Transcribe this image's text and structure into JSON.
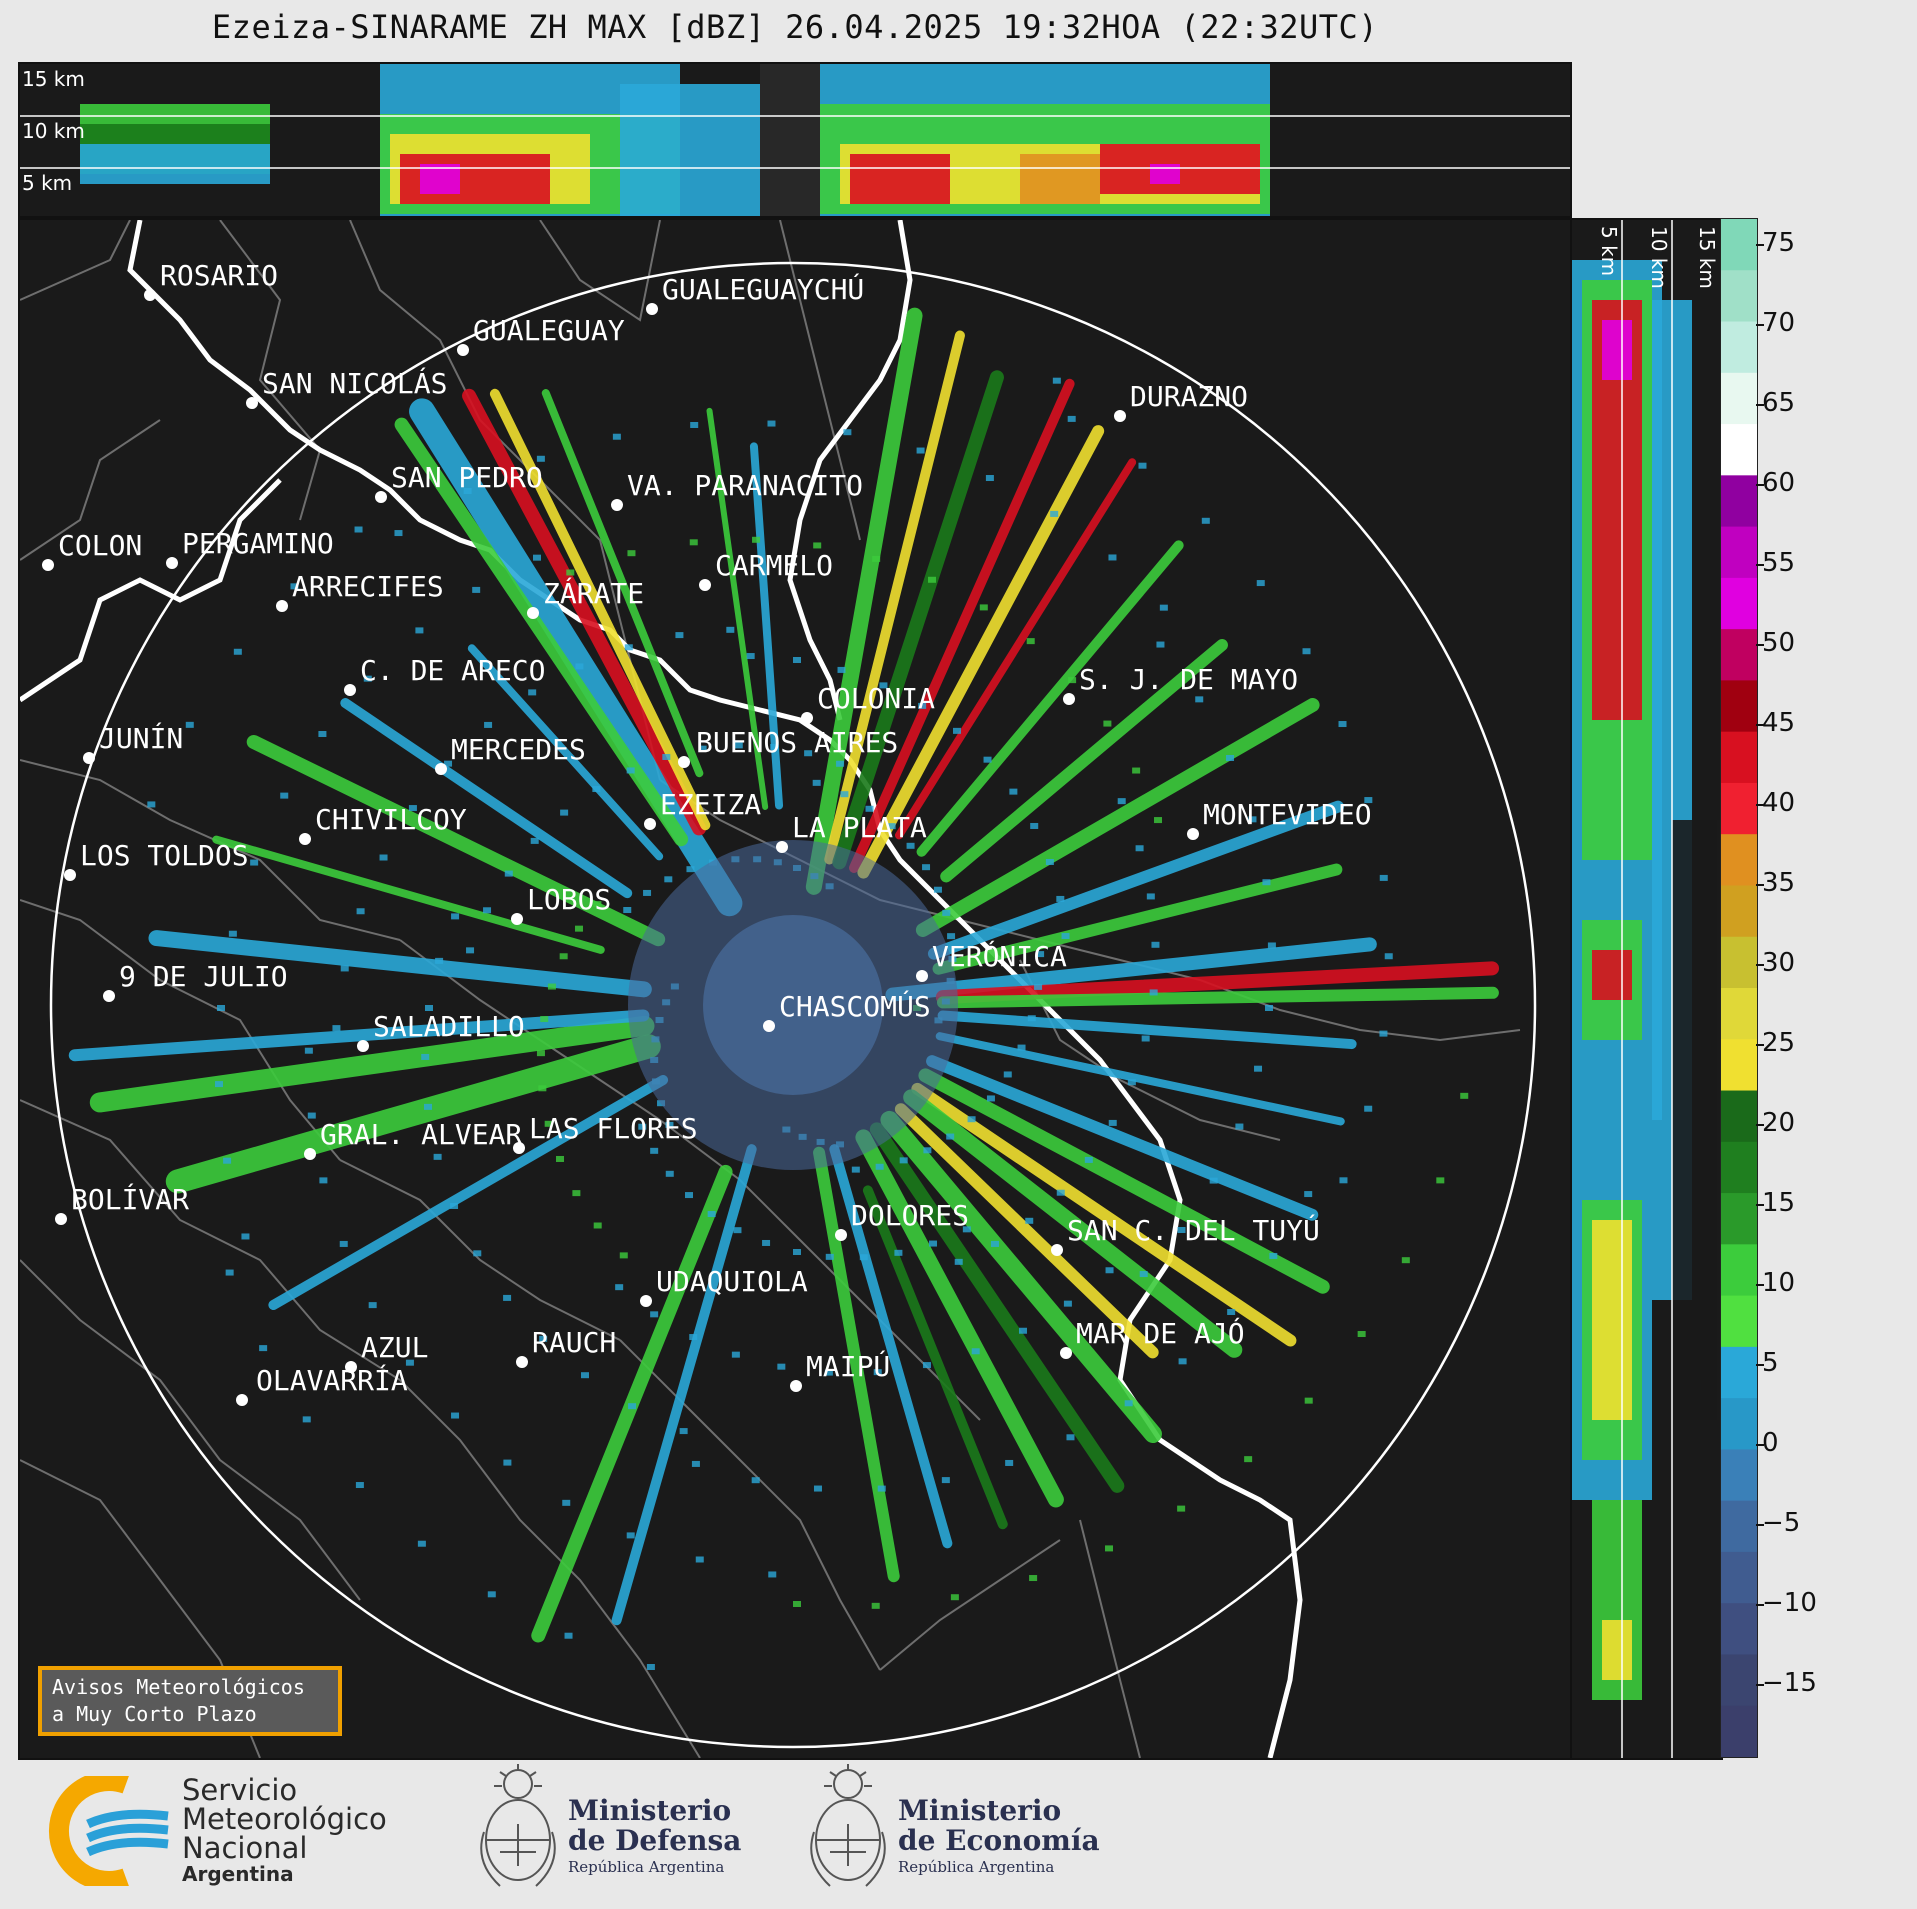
{
  "title": "Ezeiza-SINARAME ZH MAX [dBZ] 26.04.2025 19:32HOA (22:32UTC)",
  "top_panel": {
    "altitude_labels": [
      "15 km",
      "10 km",
      "5 km"
    ]
  },
  "side_panel": {
    "altitude_labels": [
      "5 km",
      "10 km",
      "15 km"
    ]
  },
  "colorbar": {
    "unit": "dBZ",
    "ticks": [
      "75",
      "70",
      "65",
      "60",
      "55",
      "50",
      "45",
      "40",
      "35",
      "30",
      "25",
      "20",
      "15",
      "10",
      "5",
      "0",
      "−5",
      "−10",
      "−15"
    ],
    "colors": {
      "very_low": "#3b3f6b",
      "low": "#3f6aa0",
      "light_blue": "#2aa8d8",
      "green": "#3ccc3c",
      "dark_green": "#1a7a1a",
      "yellow": "#f0e030",
      "orange": "#e09020",
      "red": "#d81020",
      "magenta": "#e000e0",
      "white": "#ffffff",
      "mint": "#80d8b8"
    }
  },
  "map": {
    "radar_site": "EZEIZA",
    "cities": [
      {
        "name": "ROSARIO"
      },
      {
        "name": "GUALEGUAYCHÚ"
      },
      {
        "name": "GUALEGUAY"
      },
      {
        "name": "SAN NICOLÁS"
      },
      {
        "name": "DURAZNO"
      },
      {
        "name": "SAN PEDRO"
      },
      {
        "name": "VA. PARANACITO"
      },
      {
        "name": "COLON"
      },
      {
        "name": "PERGAMINO"
      },
      {
        "name": "CARMELO"
      },
      {
        "name": "ARRECIFES"
      },
      {
        "name": "ZÁRATE"
      },
      {
        "name": "S. J. DE MAYO"
      },
      {
        "name": "C. DE ARECO"
      },
      {
        "name": "COLONIA"
      },
      {
        "name": "JUNÍN"
      },
      {
        "name": "BUENOS AIRES"
      },
      {
        "name": "MERCEDES"
      },
      {
        "name": "EZEIZA"
      },
      {
        "name": "MONTEVIDEO"
      },
      {
        "name": "CHIVILCOY"
      },
      {
        "name": "LA PLATA"
      },
      {
        "name": "LOS TOLDOS"
      },
      {
        "name": "LOBOS"
      },
      {
        "name": "VERÓNICA"
      },
      {
        "name": "9 DE JULIO"
      },
      {
        "name": "CHASCOMÚS"
      },
      {
        "name": "SALADILLO"
      },
      {
        "name": "GRAL. ALVEAR"
      },
      {
        "name": "LAS FLORES"
      },
      {
        "name": "BOLÍVAR"
      },
      {
        "name": "DOLORES"
      },
      {
        "name": "SAN C. DEL TUYÚ"
      },
      {
        "name": "UDAQUIOLA"
      },
      {
        "name": "MAR DE AJÓ"
      },
      {
        "name": "AZUL"
      },
      {
        "name": "RAUCH"
      },
      {
        "name": "OLAVARRÍA"
      },
      {
        "name": "MAIPÚ"
      }
    ]
  },
  "avisos": {
    "line1": "Avisos Meteorológicos",
    "line2": "a Muy Corto Plazo"
  },
  "logos": {
    "smn": {
      "line1": "Servicio",
      "line2": "Meteorológico",
      "line3": "Nacional",
      "line4": "Argentina",
      "colors": {
        "orange": "#f5a800",
        "blue": "#2aa0d8"
      }
    },
    "defensa": {
      "line1": "Ministerio",
      "line2": "de Defensa",
      "line3": "República Argentina"
    },
    "economia": {
      "line1": "Ministerio",
      "line2": "de Economía",
      "line3": "República Argentina"
    }
  }
}
